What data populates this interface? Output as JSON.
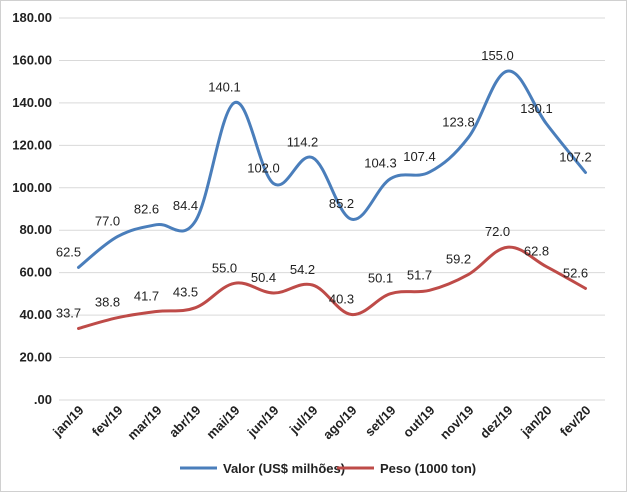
{
  "chart_data": {
    "type": "line",
    "categories": [
      "jan/19",
      "fev/19",
      "mar/19",
      "abr/19",
      "mai/19",
      "jun/19",
      "jul/19",
      "ago/19",
      "set/19",
      "out/19",
      "nov/19",
      "dez/19",
      "jan/20",
      "fev/20"
    ],
    "series": [
      {
        "name": "Valor (US$ milhões)",
        "color": "#4a7ebb",
        "values": [
          62.5,
          77.0,
          82.6,
          84.4,
          140.1,
          102.0,
          114.2,
          85.2,
          104.3,
          107.4,
          123.8,
          155.0,
          130.1,
          107.2
        ],
        "labels": [
          "62.5",
          "77.0",
          "82.6",
          "84.4",
          "140.1",
          "102.0",
          "114.2",
          "85.2",
          "104.3",
          "107.4",
          "123.8",
          "155.0",
          "130.1",
          "107.2"
        ]
      },
      {
        "name": "Peso (1000 ton)",
        "color": "#be4b48",
        "values": [
          33.7,
          38.8,
          41.7,
          43.5,
          55.0,
          50.4,
          54.2,
          40.3,
          50.1,
          51.7,
          59.2,
          72.0,
          62.8,
          52.6
        ],
        "labels": [
          "33.7",
          "38.8",
          "41.7",
          "43.5",
          "55.0",
          "50.4",
          "54.2",
          "40.3",
          "50.1",
          "51.7",
          "59.2",
          "72.0",
          "62.8",
          "52.6"
        ]
      }
    ],
    "ylim": [
      0,
      180
    ],
    "yticks": [
      0,
      20,
      40,
      60,
      80,
      100,
      120,
      140,
      160,
      180
    ],
    "ytick_labels": [
      ".00",
      "20.00",
      "40.00",
      "60.00",
      "80.00",
      "100.00",
      "120.00",
      "140.00",
      "160.00",
      "180.00"
    ],
    "grid": true,
    "legend": "bottom"
  }
}
